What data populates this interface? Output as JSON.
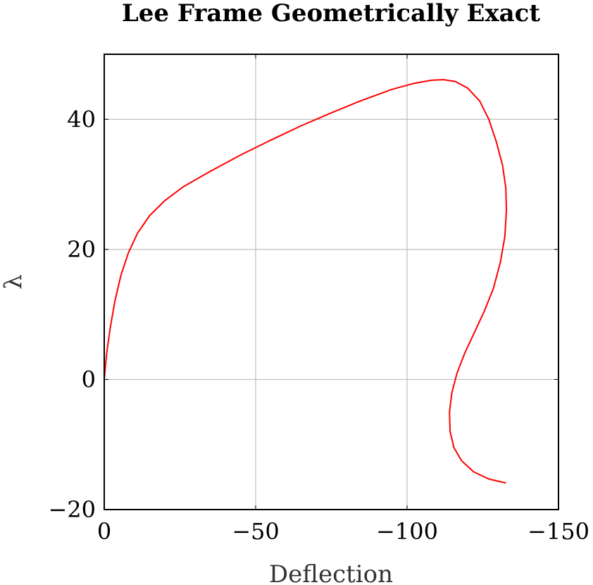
{
  "chart_data": {
    "type": "line",
    "title": "Lee Frame Geometrically Exact",
    "xlabel": "Deflection",
    "ylabel": "λ",
    "xlim": [
      0,
      -150
    ],
    "ylim": [
      -20,
      50
    ],
    "xticks": [
      0,
      -50,
      -100,
      -150
    ],
    "yticks": [
      -20,
      0,
      20,
      40
    ],
    "xtick_labels": [
      "0",
      "−50",
      "−100",
      "−150"
    ],
    "ytick_labels": [
      "−20",
      "0",
      "20",
      "40"
    ],
    "grid": true,
    "series": [
      {
        "color": "#ff0000",
        "x": [
          0,
          -0.8,
          -2,
          -3.5,
          -5.5,
          -8,
          -11,
          -15,
          -20,
          -26,
          -35,
          -45,
          -55,
          -65,
          -75,
          -85,
          -95,
          -102,
          -108,
          -112,
          -116,
          -120,
          -124,
          -127,
          -129.5,
          -131.5,
          -132.6,
          -132.8,
          -132.3,
          -130.8,
          -128.5,
          -125.5,
          -122,
          -119,
          -116.5,
          -114.8,
          -114,
          -114.2,
          -115.5,
          -118,
          -122,
          -127,
          -132.5
        ],
        "y": [
          0,
          4,
          8,
          12,
          16,
          19.5,
          22.5,
          25.2,
          27.5,
          29.6,
          32,
          34.5,
          36.8,
          39,
          41,
          42.9,
          44.6,
          45.5,
          46,
          46.1,
          45.8,
          44.8,
          42.8,
          40,
          36.5,
          33,
          29.5,
          26,
          22,
          18,
          14,
          10.5,
          7,
          4,
          1,
          -2,
          -5,
          -8,
          -10.5,
          -12.5,
          -14.2,
          -15.3,
          -15.9
        ]
      }
    ]
  }
}
